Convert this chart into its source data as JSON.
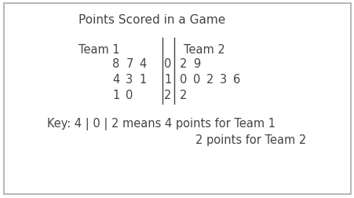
{
  "title": "Points Scored in a Game",
  "team1_label": "Team 1",
  "team2_label": "Team 2",
  "rows": [
    {
      "stem": "0",
      "team1_leaves": [
        "8",
        "7",
        "4"
      ],
      "team2_leaves": [
        "2",
        "9"
      ]
    },
    {
      "stem": "1",
      "team1_leaves": [
        "4",
        "3",
        "1"
      ],
      "team2_leaves": [
        "0",
        "0",
        "2",
        "3",
        "6"
      ]
    },
    {
      "stem": "2",
      "team1_leaves": [
        "1",
        "0"
      ],
      "team2_leaves": [
        "2"
      ]
    }
  ],
  "key_line1": "Key: 4 | 0 | 2 means 4 points for Team 1",
  "key_line2": "2 points for Team 2",
  "bg_color": "#ffffff",
  "border_color": "#aaaaaa",
  "text_color": "#444444",
  "font_size": 10.5,
  "title_font_size": 11
}
